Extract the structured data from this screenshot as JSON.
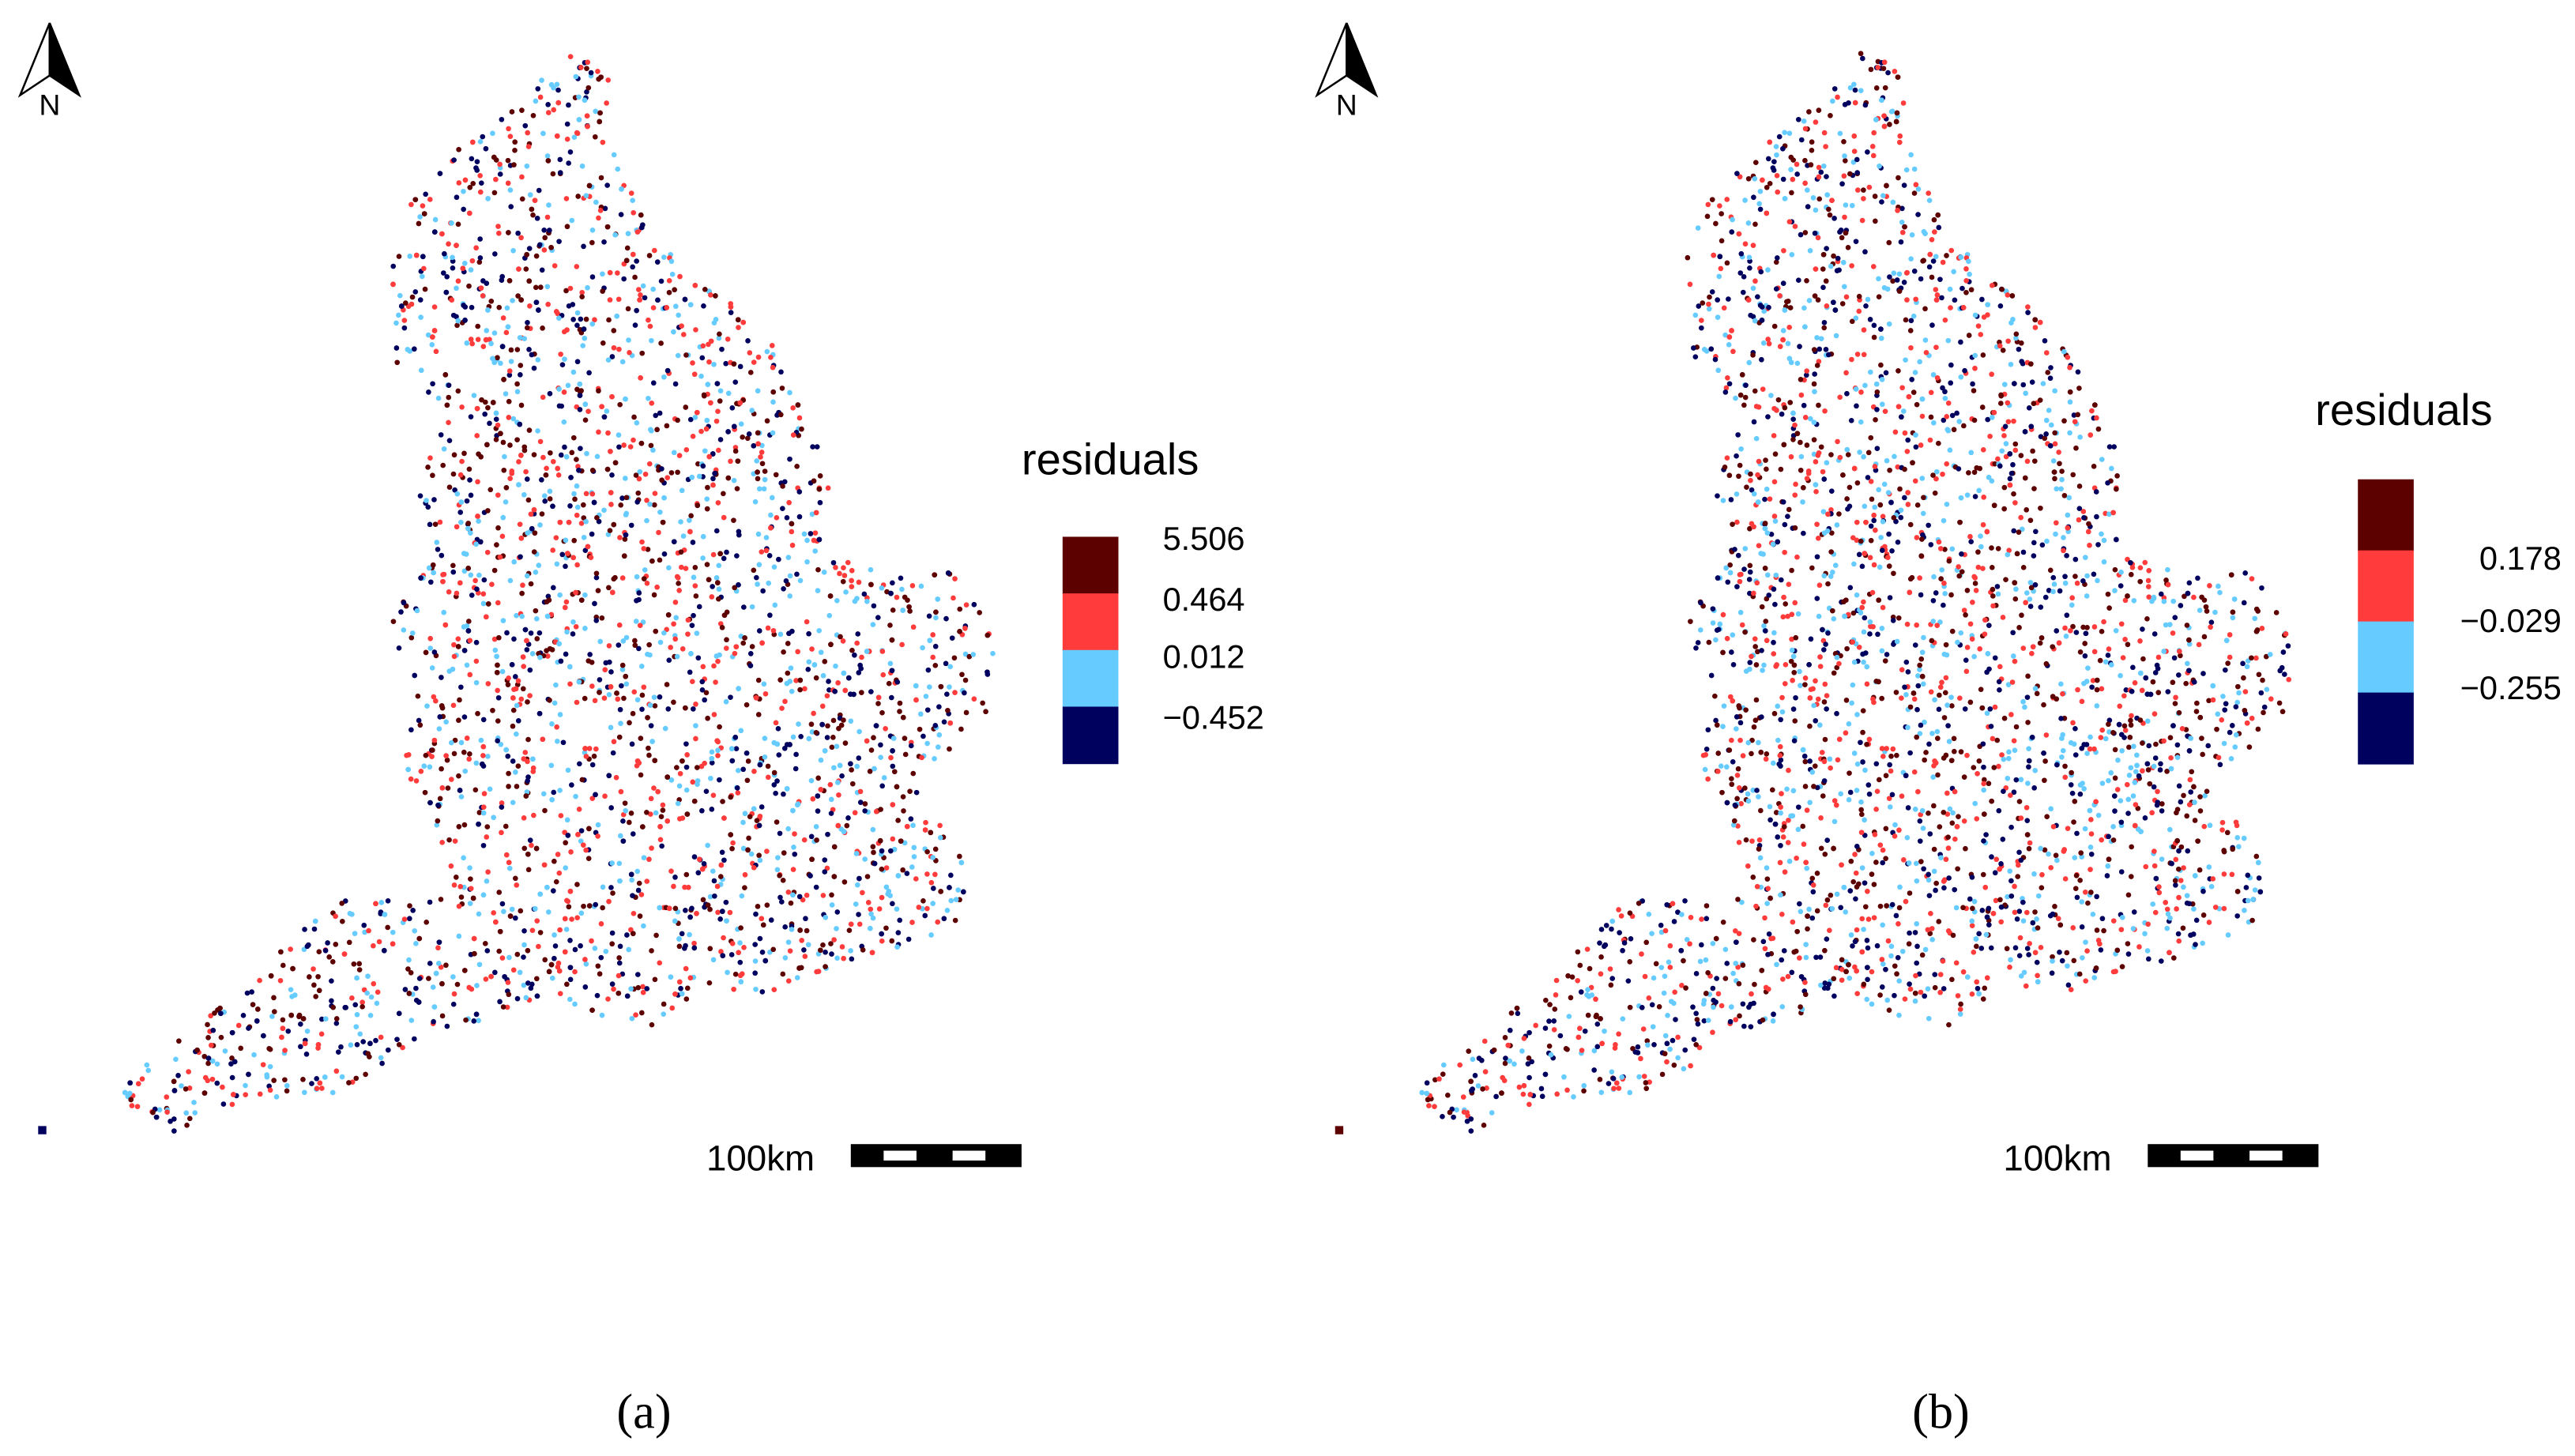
{
  "panels": [
    {
      "north": "N",
      "legend": {
        "title": "residuals",
        "colors": [
          "#5c0000",
          "#ff3b3b",
          "#66ccff",
          "#00005e"
        ],
        "labels": [
          "5.506",
          "0.464",
          "0.012",
          "−0.452"
        ]
      },
      "scale_label": "100km",
      "caption": "(a)"
    },
    {
      "north": "N",
      "legend": {
        "title": "residuals",
        "colors": [
          "#5c0000",
          "#ff3b3b",
          "#66ccff",
          "#00005e"
        ],
        "labels": [
          "0.178",
          "−0.029",
          "−0.255"
        ]
      },
      "scale_label": "100km",
      "caption": "(b)"
    }
  ]
}
